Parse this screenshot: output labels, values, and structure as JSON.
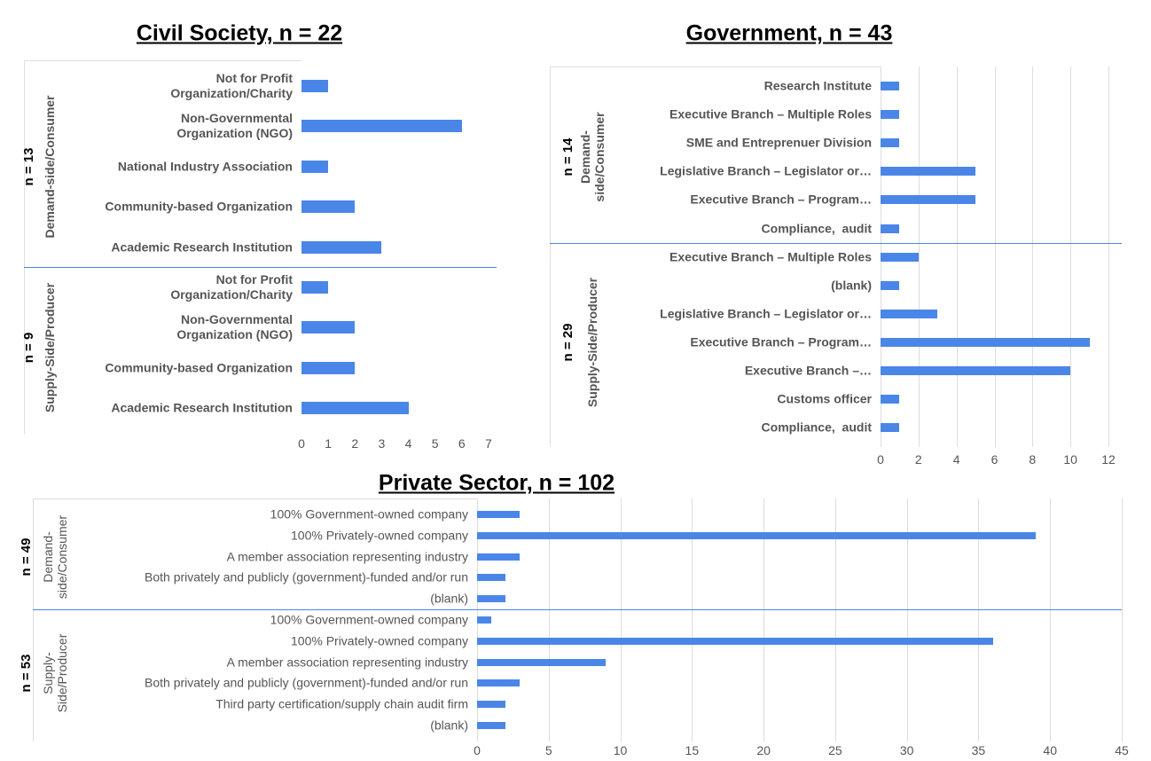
{
  "chart_data": [
    {
      "type": "bar",
      "title": "Civil Society, n = 22",
      "xlim": [
        0,
        7.3
      ],
      "xticks": [
        0,
        1,
        2,
        3,
        4,
        5,
        6,
        7
      ],
      "color": "#4a86e8",
      "grid": false,
      "groups": [
        {
          "count_label": "n = 13",
          "name": "Demand-side/Consumer",
          "categories": [
            "Not for Profit\nOrganization/Charity",
            "Non-Governmental\nOrganization (NGO)",
            "National Industry Association",
            "Community-based Organization",
            "Academic Research Institution"
          ],
          "values": [
            1,
            6,
            1,
            2,
            3
          ]
        },
        {
          "count_label": "n = 9",
          "name": "Supply-Side/Producer",
          "categories": [
            "Not for Profit\nOrganization/Charity",
            "Non-Governmental\nOrganization (NGO)",
            "Community-based Organization",
            "Academic Research Institution"
          ],
          "values": [
            1,
            2,
            2,
            4
          ]
        }
      ]
    },
    {
      "type": "bar",
      "title": "Government, n = 43",
      "xlim": [
        0,
        12.7
      ],
      "xticks": [
        0,
        2,
        4,
        6,
        8,
        10,
        12
      ],
      "color": "#4a86e8",
      "grid": true,
      "groups": [
        {
          "count_label": "n = 14",
          "name": "Demand-\nside/Consumer",
          "categories": [
            "Research Institute",
            "Executive Branch – Multiple Roles",
            "SME and Entreprenuer Division",
            "Legislative Branch – Legislator or…",
            "Executive Branch – Program…",
            "Compliance,  audit"
          ],
          "values": [
            1,
            1,
            1,
            5,
            5,
            1
          ]
        },
        {
          "count_label": "n = 29",
          "name": "Supply-Side/Producer",
          "categories": [
            "Executive Branch – Multiple Roles",
            "(blank)",
            "Legislative Branch – Legislator or…",
            "Executive Branch – Program…",
            "Executive Branch –…",
            "Customs officer",
            "Compliance,  audit"
          ],
          "values": [
            2,
            1,
            3,
            11,
            10,
            1,
            1
          ]
        }
      ]
    },
    {
      "type": "bar",
      "title": "Private Sector, n = 102",
      "xlim": [
        0,
        45
      ],
      "xticks": [
        0,
        5,
        10,
        15,
        20,
        25,
        30,
        35,
        40,
        45
      ],
      "color": "#4a86e8",
      "grid": true,
      "groups": [
        {
          "count_label": "n = 49",
          "name": "Demand-\nside/Consumer",
          "categories": [
            "100% Government-owned company",
            "100% Privately-owned company",
            "A member association representing industry",
            "Both privately and publicly (government)-funded and/or run",
            "(blank)"
          ],
          "values": [
            3,
            39,
            3,
            2,
            2
          ]
        },
        {
          "count_label": "n = 53",
          "name": "Supply-\nSide/Producer",
          "categories": [
            "100% Government-owned company",
            "100% Privately-owned company",
            "A member association representing industry",
            "Both privately and publicly (government)-funded and/or run",
            "Third party certification/supply chain audit firm",
            "(blank)"
          ],
          "values": [
            1,
            36,
            9,
            3,
            2,
            2
          ]
        }
      ]
    }
  ]
}
